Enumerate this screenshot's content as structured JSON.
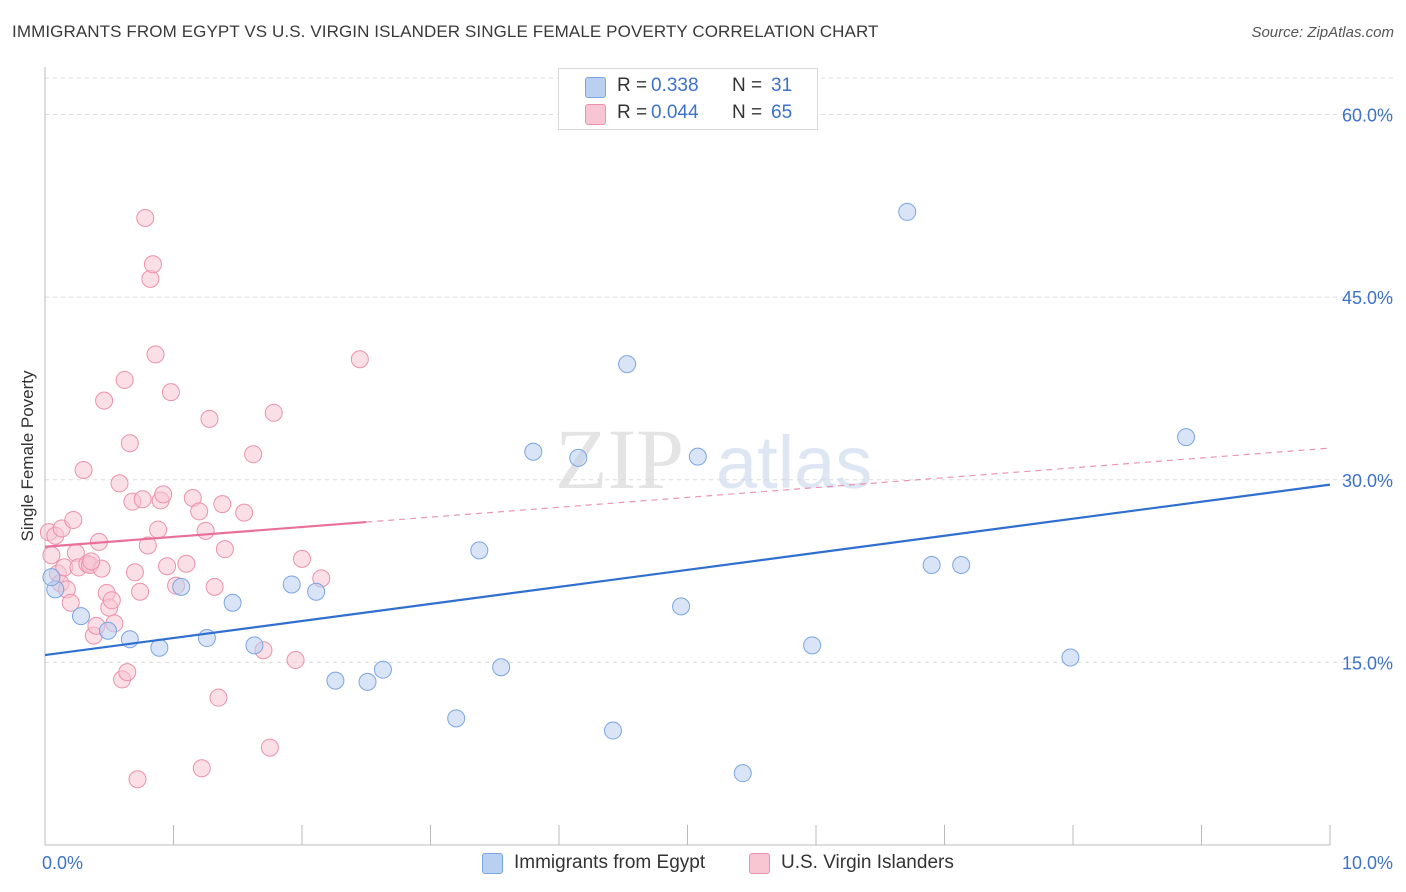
{
  "header": {
    "title": "IMMIGRANTS FROM EGYPT VS U.S. VIRGIN ISLANDER SINGLE FEMALE POVERTY CORRELATION CHART",
    "source": "Source: ZipAtlas.com"
  },
  "watermark": {
    "part1": "ZIP",
    "part2": "atlas"
  },
  "colors": {
    "blue_fill": "#b9d0f1",
    "blue_stroke": "#7aa5e3",
    "blue_line": "#2f6fcf",
    "pink_fill": "#f8c5d3",
    "pink_stroke": "#ec91ab",
    "pink_line": "#e8709a",
    "axis_label": "#3d72c8",
    "grid": "#dcdcdc"
  },
  "legend_top": {
    "rows": [
      {
        "r_label": "R =",
        "r_value": "0.338",
        "n_label": "N =",
        "n_value": "31"
      },
      {
        "r_label": "R =",
        "r_value": "0.044",
        "n_label": "N =",
        "n_value": "65"
      }
    ]
  },
  "legend_bottom": [
    {
      "label": "Immigrants from Egypt"
    },
    {
      "label": "U.S. Virgin Islanders"
    }
  ],
  "chart_data": {
    "type": "scatter",
    "title": "IMMIGRANTS FROM EGYPT VS U.S. VIRGIN ISLANDER SINGLE FEMALE POVERTY CORRELATION CHART",
    "xlabel": "",
    "ylabel": "Single Female Poverty",
    "xlim": [
      0,
      10
    ],
    "ylim": [
      0,
      63
    ],
    "x_tick_labels": [
      {
        "value": 0,
        "label": "0.0%"
      },
      {
        "value": 10,
        "label": "10.0%"
      }
    ],
    "y_tick_labels": [
      {
        "value": 15,
        "label": "15.0%"
      },
      {
        "value": 30,
        "label": "30.0%"
      },
      {
        "value": 45,
        "label": "45.0%"
      },
      {
        "value": 60,
        "label": "60.0%"
      }
    ],
    "grid": true,
    "series": [
      {
        "name": "Immigrants from Egypt",
        "color": "#7aa5e3",
        "r": 0.338,
        "n": 31,
        "trend": {
          "x": [
            0,
            10
          ],
          "y": [
            15.6,
            29.6
          ],
          "dashed_after": null
        },
        "points": [
          [
            0.08,
            21.0
          ],
          [
            0.05,
            22.0
          ],
          [
            0.28,
            18.8
          ],
          [
            0.49,
            17.6
          ],
          [
            0.66,
            16.9
          ],
          [
            0.89,
            16.2
          ],
          [
            1.06,
            21.2
          ],
          [
            1.26,
            17.0
          ],
          [
            1.46,
            19.9
          ],
          [
            1.63,
            16.4
          ],
          [
            1.92,
            21.4
          ],
          [
            2.11,
            20.8
          ],
          [
            2.26,
            13.5
          ],
          [
            2.51,
            13.4
          ],
          [
            2.63,
            14.4
          ],
          [
            3.2,
            10.4
          ],
          [
            3.38,
            24.2
          ],
          [
            3.55,
            14.6
          ],
          [
            3.8,
            32.3
          ],
          [
            4.15,
            31.8
          ],
          [
            4.42,
            9.4
          ],
          [
            4.53,
            39.5
          ],
          [
            4.95,
            19.6
          ],
          [
            5.08,
            31.9
          ],
          [
            5.43,
            5.9
          ],
          [
            5.97,
            16.4
          ],
          [
            6.71,
            52.0
          ],
          [
            6.9,
            23.0
          ],
          [
            7.13,
            23.0
          ],
          [
            7.98,
            15.4
          ],
          [
            8.88,
            33.5
          ]
        ]
      },
      {
        "name": "U.S. Virgin Islanders",
        "color": "#ec91ab",
        "r": 0.044,
        "n": 65,
        "trend": {
          "x": [
            0,
            10
          ],
          "y": [
            24.5,
            32.6
          ],
          "dashed_after": 2.5
        },
        "points": [
          [
            0.03,
            25.7
          ],
          [
            0.05,
            23.8
          ],
          [
            0.08,
            25.4
          ],
          [
            0.1,
            22.3
          ],
          [
            0.12,
            21.5
          ],
          [
            0.13,
            26.0
          ],
          [
            0.15,
            22.8
          ],
          [
            0.17,
            21.0
          ],
          [
            0.2,
            19.9
          ],
          [
            0.22,
            26.7
          ],
          [
            0.24,
            24.0
          ],
          [
            0.26,
            22.8
          ],
          [
            0.3,
            30.8
          ],
          [
            0.33,
            23.1
          ],
          [
            0.35,
            23.0
          ],
          [
            0.38,
            17.2
          ],
          [
            0.4,
            18.0
          ],
          [
            0.42,
            24.9
          ],
          [
            0.44,
            22.7
          ],
          [
            0.46,
            36.5
          ],
          [
            0.48,
            20.7
          ],
          [
            0.5,
            19.5
          ],
          [
            0.52,
            20.1
          ],
          [
            0.54,
            18.2
          ],
          [
            0.58,
            29.7
          ],
          [
            0.6,
            13.6
          ],
          [
            0.62,
            38.2
          ],
          [
            0.64,
            14.2
          ],
          [
            0.66,
            33.0
          ],
          [
            0.68,
            28.2
          ],
          [
            0.7,
            22.4
          ],
          [
            0.72,
            5.4
          ],
          [
            0.74,
            20.8
          ],
          [
            0.76,
            28.4
          ],
          [
            0.78,
            51.5
          ],
          [
            0.8,
            24.6
          ],
          [
            0.82,
            46.5
          ],
          [
            0.84,
            47.7
          ],
          [
            0.86,
            40.3
          ],
          [
            0.88,
            25.9
          ],
          [
            0.9,
            28.3
          ],
          [
            0.92,
            28.8
          ],
          [
            0.95,
            22.9
          ],
          [
            0.98,
            37.2
          ],
          [
            1.02,
            21.3
          ],
          [
            1.1,
            23.1
          ],
          [
            1.15,
            28.5
          ],
          [
            1.2,
            27.4
          ],
          [
            1.22,
            6.3
          ],
          [
            1.25,
            25.8
          ],
          [
            1.28,
            35.0
          ],
          [
            1.32,
            21.2
          ],
          [
            1.35,
            12.1
          ],
          [
            1.38,
            28.0
          ],
          [
            1.4,
            24.3
          ],
          [
            1.55,
            27.3
          ],
          [
            1.62,
            32.1
          ],
          [
            1.7,
            16.0
          ],
          [
            1.75,
            8.0
          ],
          [
            1.78,
            35.5
          ],
          [
            1.95,
            15.2
          ],
          [
            2.0,
            23.5
          ],
          [
            2.15,
            21.9
          ],
          [
            2.45,
            39.9
          ],
          [
            0.36,
            23.3
          ]
        ]
      }
    ]
  }
}
